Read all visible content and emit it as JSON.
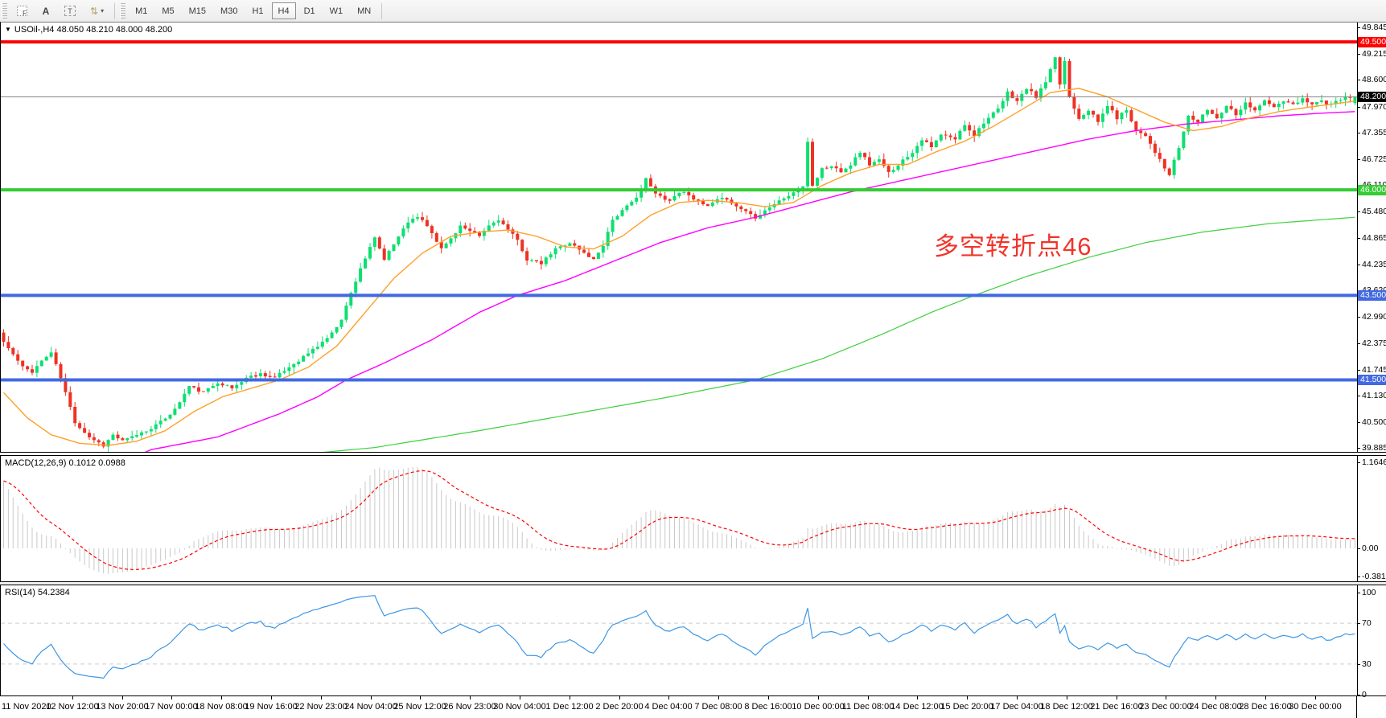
{
  "toolbar": {
    "tools": [
      {
        "name": "chart-shift-button",
        "icon": "f-grid-icon",
        "glyph": "F"
      },
      {
        "name": "text-tool-button",
        "icon": "letter-a-icon",
        "glyph": "A"
      },
      {
        "name": "label-tool-button",
        "icon": "text-box-icon",
        "glyph": "T"
      },
      {
        "name": "objects-tool-button",
        "icon": "arrows-icon",
        "glyph": "⇅",
        "caret": "▾"
      }
    ],
    "timeframes": [
      {
        "label": "M1",
        "active": false
      },
      {
        "label": "M5",
        "active": false
      },
      {
        "label": "M15",
        "active": false
      },
      {
        "label": "M30",
        "active": false
      },
      {
        "label": "H1",
        "active": false
      },
      {
        "label": "H4",
        "active": true
      },
      {
        "label": "D1",
        "active": false
      },
      {
        "label": "W1",
        "active": false
      },
      {
        "label": "MN",
        "active": false
      }
    ]
  },
  "main_chart": {
    "collapse_arrow": "▼",
    "title": "USOil-,H4  48.050 48.210 48.000 48.200",
    "symbol": "USOil-",
    "period": "H4",
    "open": "48.050",
    "high": "48.210",
    "low": "48.000",
    "close": "48.200",
    "annotation": {
      "text": "多空转折点46",
      "color": "#f2342a"
    }
  },
  "macd_panel": {
    "title": "MACD(12,26,9) 0.1012 0.0988",
    "name": "MACD(12,26,9)",
    "main_value": "0.1012",
    "signal_value": "0.0988"
  },
  "rsi_panel": {
    "title": "RSI(14) 54.2384",
    "name": "RSI(14)",
    "value": "54.2384"
  },
  "chart_data": {
    "type": "candlestick",
    "title": "USOil-,H4",
    "candle_count": 285,
    "price_axis": {
      "ticks": [
        "49.845",
        "49.215",
        "48.600",
        "47.970",
        "47.355",
        "46.725",
        "46.110",
        "45.480",
        "44.865",
        "44.235",
        "43.620",
        "42.990",
        "42.375",
        "41.745",
        "41.130",
        "40.500",
        "39.885"
      ],
      "max": 49.845,
      "min": 39.885
    },
    "h_lines": [
      {
        "price": 49.5,
        "label": "49.500",
        "color": "#fe0000"
      },
      {
        "price": 46.0,
        "label": "46.000",
        "color": "#33cc33"
      },
      {
        "price": 43.5,
        "label": "43.500",
        "color": "#4169e1"
      },
      {
        "price": 41.5,
        "label": "41.500",
        "color": "#4169e1"
      }
    ],
    "current_price": {
      "price": 48.2,
      "label": "48.200",
      "box_color": "#000000",
      "line_color": "#808080"
    },
    "last_candle": {
      "open": 48.05,
      "high": 48.21,
      "low": 48.0,
      "close": 48.2
    },
    "close_anchors": [
      [
        0,
        42.4
      ],
      [
        2,
        42.1
      ],
      [
        4,
        41.8
      ],
      [
        6,
        41.7
      ],
      [
        8,
        41.95
      ],
      [
        10,
        42.15
      ],
      [
        12,
        41.55
      ],
      [
        15,
        40.5
      ],
      [
        18,
        40.15
      ],
      [
        21,
        39.95
      ],
      [
        23,
        40.2
      ],
      [
        25,
        40.05
      ],
      [
        27,
        40.15
      ],
      [
        30,
        40.3
      ],
      [
        33,
        40.5
      ],
      [
        36,
        40.8
      ],
      [
        39,
        41.35
      ],
      [
        42,
        41.2
      ],
      [
        45,
        41.45
      ],
      [
        48,
        41.3
      ],
      [
        51,
        41.55
      ],
      [
        54,
        41.65
      ],
      [
        57,
        41.55
      ],
      [
        60,
        41.8
      ],
      [
        63,
        42.05
      ],
      [
        66,
        42.3
      ],
      [
        69,
        42.6
      ],
      [
        71,
        42.95
      ],
      [
        73,
        43.55
      ],
      [
        75,
        44.15
      ],
      [
        78,
        44.85
      ],
      [
        80,
        44.35
      ],
      [
        82,
        44.7
      ],
      [
        84,
        45.1
      ],
      [
        86,
        45.35
      ],
      [
        88,
        45.3
      ],
      [
        90,
        45.0
      ],
      [
        92,
        44.6
      ],
      [
        94,
        44.85
      ],
      [
        96,
        45.15
      ],
      [
        98,
        45.0
      ],
      [
        100,
        44.9
      ],
      [
        102,
        45.15
      ],
      [
        104,
        45.3
      ],
      [
        106,
        45.05
      ],
      [
        108,
        44.8
      ],
      [
        110,
        44.35
      ],
      [
        113,
        44.25
      ],
      [
        116,
        44.6
      ],
      [
        119,
        44.75
      ],
      [
        122,
        44.5
      ],
      [
        124,
        44.35
      ],
      [
        126,
        44.7
      ],
      [
        128,
        45.3
      ],
      [
        130,
        45.5
      ],
      [
        132,
        45.7
      ],
      [
        134,
        46.0
      ],
      [
        135,
        46.25
      ],
      [
        137,
        45.9
      ],
      [
        140,
        45.75
      ],
      [
        142,
        45.95
      ],
      [
        144,
        45.9
      ],
      [
        146,
        45.7
      ],
      [
        148,
        45.6
      ],
      [
        150,
        45.75
      ],
      [
        152,
        45.8
      ],
      [
        154,
        45.6
      ],
      [
        156,
        45.5
      ],
      [
        158,
        45.35
      ],
      [
        161,
        45.6
      ],
      [
        164,
        45.8
      ],
      [
        167,
        46.0
      ],
      [
        168,
        46.05
      ],
      [
        169,
        47.15
      ],
      [
        170,
        46.1
      ],
      [
        172,
        46.5
      ],
      [
        174,
        46.55
      ],
      [
        176,
        46.45
      ],
      [
        178,
        46.6
      ],
      [
        180,
        46.9
      ],
      [
        182,
        46.6
      ],
      [
        184,
        46.7
      ],
      [
        186,
        46.4
      ],
      [
        188,
        46.6
      ],
      [
        191,
        46.9
      ],
      [
        193,
        47.2
      ],
      [
        195,
        47.0
      ],
      [
        197,
        47.3
      ],
      [
        200,
        47.2
      ],
      [
        202,
        47.55
      ],
      [
        204,
        47.3
      ],
      [
        206,
        47.6
      ],
      [
        209,
        47.9
      ],
      [
        211,
        48.3
      ],
      [
        213,
        48.1
      ],
      [
        215,
        48.4
      ],
      [
        217,
        48.2
      ],
      [
        219,
        48.55
      ],
      [
        221,
        49.1
      ],
      [
        222,
        48.5
      ],
      [
        223,
        49.05
      ],
      [
        224,
        48.2
      ],
      [
        226,
        47.7
      ],
      [
        228,
        47.9
      ],
      [
        230,
        47.6
      ],
      [
        232,
        48.0
      ],
      [
        234,
        47.7
      ],
      [
        236,
        47.9
      ],
      [
        238,
        47.4
      ],
      [
        240,
        47.3
      ],
      [
        242,
        46.9
      ],
      [
        244,
        46.5
      ],
      [
        245,
        46.35
      ],
      [
        247,
        47.0
      ],
      [
        249,
        47.75
      ],
      [
        251,
        47.6
      ],
      [
        253,
        47.9
      ],
      [
        255,
        47.7
      ],
      [
        257,
        48.0
      ],
      [
        259,
        47.8
      ],
      [
        261,
        48.05
      ],
      [
        263,
        47.9
      ],
      [
        265,
        48.1
      ],
      [
        267,
        47.95
      ],
      [
        269,
        48.1
      ],
      [
        271,
        48.0
      ],
      [
        273,
        48.15
      ],
      [
        275,
        48.05
      ],
      [
        277,
        48.1
      ],
      [
        279,
        48.0
      ],
      [
        281,
        48.15
      ],
      [
        284,
        48.2
      ]
    ],
    "ma_fast_anchors": [
      [
        0,
        41.2
      ],
      [
        5,
        40.6
      ],
      [
        10,
        40.2
      ],
      [
        16,
        40.0
      ],
      [
        22,
        39.95
      ],
      [
        28,
        40.05
      ],
      [
        34,
        40.3
      ],
      [
        40,
        40.75
      ],
      [
        46,
        41.1
      ],
      [
        52,
        41.3
      ],
      [
        58,
        41.5
      ],
      [
        64,
        41.8
      ],
      [
        70,
        42.3
      ],
      [
        76,
        43.1
      ],
      [
        82,
        43.9
      ],
      [
        88,
        44.5
      ],
      [
        94,
        44.9
      ],
      [
        100,
        45.0
      ],
      [
        106,
        45.05
      ],
      [
        112,
        44.9
      ],
      [
        118,
        44.65
      ],
      [
        124,
        44.6
      ],
      [
        130,
        44.9
      ],
      [
        136,
        45.4
      ],
      [
        142,
        45.7
      ],
      [
        148,
        45.75
      ],
      [
        154,
        45.7
      ],
      [
        160,
        45.6
      ],
      [
        166,
        45.7
      ],
      [
        172,
        46.1
      ],
      [
        178,
        46.4
      ],
      [
        184,
        46.6
      ],
      [
        190,
        46.6
      ],
      [
        196,
        46.9
      ],
      [
        202,
        47.15
      ],
      [
        208,
        47.5
      ],
      [
        214,
        47.9
      ],
      [
        220,
        48.3
      ],
      [
        226,
        48.4
      ],
      [
        232,
        48.2
      ],
      [
        238,
        47.9
      ],
      [
        244,
        47.6
      ],
      [
        250,
        47.4
      ],
      [
        256,
        47.5
      ],
      [
        262,
        47.7
      ],
      [
        268,
        47.85
      ],
      [
        274,
        47.95
      ],
      [
        284,
        48.1
      ]
    ],
    "ma_mid_anchors": [
      [
        0,
        38.3
      ],
      [
        20,
        39.3
      ],
      [
        31,
        39.85
      ],
      [
        45,
        40.15
      ],
      [
        58,
        40.7
      ],
      [
        66,
        41.1
      ],
      [
        72,
        41.5
      ],
      [
        80,
        41.9
      ],
      [
        90,
        42.45
      ],
      [
        100,
        43.1
      ],
      [
        108,
        43.5
      ],
      [
        118,
        43.85
      ],
      [
        128,
        44.3
      ],
      [
        138,
        44.75
      ],
      [
        148,
        45.1
      ],
      [
        158,
        45.35
      ],
      [
        168,
        45.65
      ],
      [
        178,
        45.95
      ],
      [
        188,
        46.2
      ],
      [
        198,
        46.45
      ],
      [
        208,
        46.7
      ],
      [
        218,
        46.95
      ],
      [
        228,
        47.2
      ],
      [
        238,
        47.4
      ],
      [
        248,
        47.55
      ],
      [
        258,
        47.65
      ],
      [
        268,
        47.75
      ],
      [
        278,
        47.82
      ],
      [
        284,
        47.85
      ]
    ],
    "ma_slow_anchors": [
      [
        0,
        38.7
      ],
      [
        40,
        39.5
      ],
      [
        78,
        39.9
      ],
      [
        100,
        40.3
      ],
      [
        120,
        40.7
      ],
      [
        140,
        41.1
      ],
      [
        158,
        41.5
      ],
      [
        172,
        42.0
      ],
      [
        185,
        42.6
      ],
      [
        195,
        43.1
      ],
      [
        204,
        43.5
      ],
      [
        215,
        43.95
      ],
      [
        228,
        44.4
      ],
      [
        240,
        44.75
      ],
      [
        252,
        45.0
      ],
      [
        266,
        45.2
      ],
      [
        284,
        45.35
      ]
    ],
    "macd": {
      "axis_ticks": [
        "1.1646",
        "0.00",
        "-0.3812"
      ],
      "axis_max": 1.1646,
      "axis_min": -0.3812,
      "last_main": 0.1012,
      "last_signal": 0.0988
    },
    "rsi": {
      "axis_ticks": [
        "100",
        "70",
        "30",
        "0"
      ],
      "levels": [
        70,
        30
      ],
      "last_value": 54.2384
    },
    "x_labels": [
      "11 Nov 2020",
      "12 Nov 12:00",
      "13 Nov 20:00",
      "17 Nov 00:00",
      "18 Nov 08:00",
      "19 Nov 16:00",
      "22 Nov 23:00",
      "24 Nov 04:00",
      "25 Nov 12:00",
      "26 Nov 23:00",
      "30 Nov 04:00",
      "1 Dec 12:00",
      "2 Dec 20:00",
      "4 Dec 04:00",
      "7 Dec 08:00",
      "8 Dec 16:00",
      "10 Dec 00:00",
      "11 Dec 08:00",
      "14 Dec 12:00",
      "15 Dec 20:00",
      "17 Dec 04:00",
      "18 Dec 12:00",
      "21 Dec 16:00",
      "23 Dec 00:00",
      "24 Dec 08:00",
      "28 Dec 16:00",
      "30 Dec 00:00"
    ],
    "colors": {
      "bull": "#0ddf70",
      "bear": "#ee3124",
      "ma_fast": "#ffa028",
      "ma_mid": "#ff00ff",
      "ma_slow": "#3ecf3e",
      "macd_bar": "#c9c9c9",
      "macd_signal": "#ff0000",
      "rsi_line": "#3e97e4",
      "rsi_level": "#cccccc",
      "current_line": "#808080"
    }
  }
}
